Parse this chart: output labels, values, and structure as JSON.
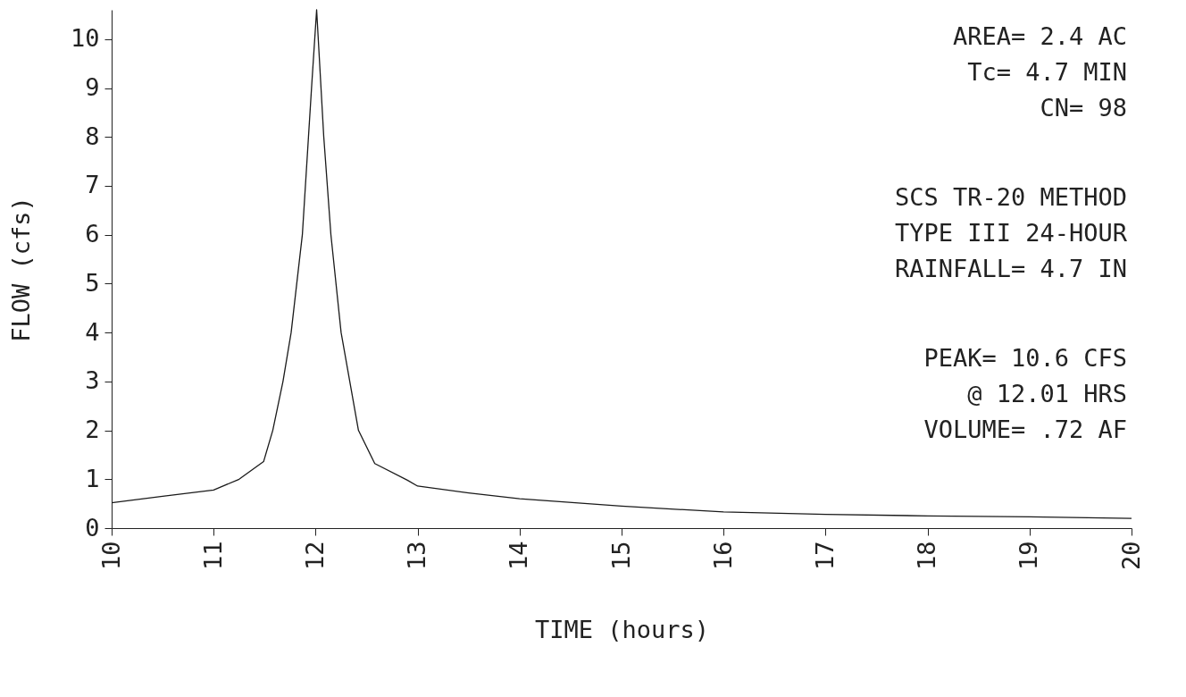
{
  "chart_data": {
    "type": "line",
    "xlabel": "TIME (hours)",
    "ylabel": "FLOW (cfs)",
    "x": [
      10.0,
      10.5,
      11.0,
      11.25,
      11.49,
      11.58,
      11.68,
      11.76,
      11.87,
      11.93,
      11.96,
      12.01,
      12.08,
      12.15,
      12.25,
      12.42,
      12.58,
      12.9,
      13.0,
      13.5,
      14.0,
      15.0,
      16.0,
      17.0,
      18.0,
      19.0,
      20.0
    ],
    "series": [
      {
        "color": "#1a1a1a",
        "values": [
          0.52,
          0.65,
          0.78,
          1.0,
          1.36,
          2.0,
          3.0,
          4.0,
          6.0,
          8.0,
          9.0,
          10.6,
          8.0,
          6.0,
          4.0,
          2.0,
          1.32,
          0.98,
          0.86,
          0.72,
          0.6,
          0.45,
          0.33,
          0.28,
          0.25,
          0.23,
          0.2
        ]
      }
    ],
    "xlim": [
      10,
      20
    ],
    "xticks": [
      10,
      11,
      12,
      13,
      14,
      15,
      16,
      17,
      18,
      19,
      20
    ],
    "ylim": [
      0,
      10.6
    ],
    "yticks": [
      0,
      1,
      2,
      3,
      4,
      5,
      6,
      7,
      8,
      9,
      10
    ],
    "grid": false,
    "marker": "none",
    "line_style": "solid",
    "annotations": [
      "AREA= 2.4 AC\nTc= 4.7 MIN\nCN= 98",
      "SCS TR-20 METHOD\nTYPE III 24-HOUR\nRAINFALL= 4.7 IN",
      "PEAK= 10.6 CFS\n@ 12.01 HRS\nVOLUME= .72 AF"
    ]
  }
}
